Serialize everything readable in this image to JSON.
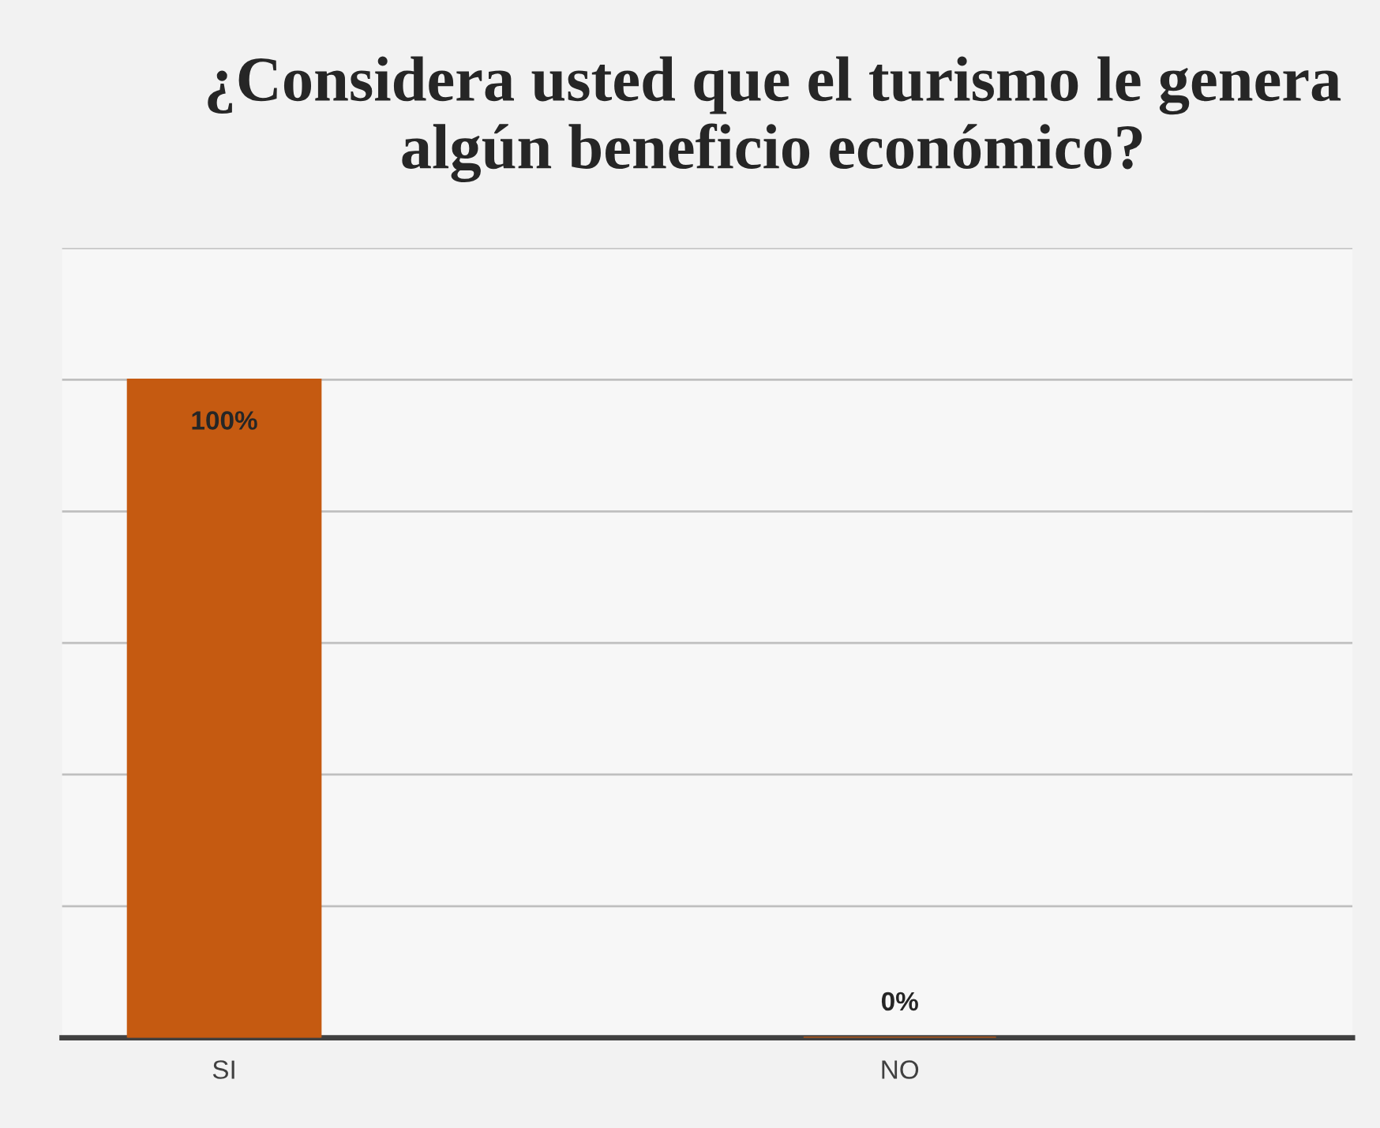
{
  "chart_data": {
    "type": "bar",
    "title": "¿Considera usted que el turismo le genera algún beneficio económico?",
    "categories": [
      "SI",
      "NO"
    ],
    "values": [
      100,
      0
    ],
    "color": "#c55a11",
    "value_labels": [
      "100%",
      "0%"
    ],
    "ylim": [
      0,
      120
    ],
    "yticks": [
      {
        "value": 0,
        "label": null
      },
      {
        "value": 20,
        "label": null
      },
      {
        "value": 40,
        "label": null
      },
      {
        "value": 60,
        "label": null
      },
      {
        "value": 80,
        "label": null
      },
      {
        "value": 100,
        "label": null
      },
      {
        "value": 120,
        "label": null
      }
    ],
    "tick_labels": "x",
    "grid": "y",
    "legend": false
  }
}
